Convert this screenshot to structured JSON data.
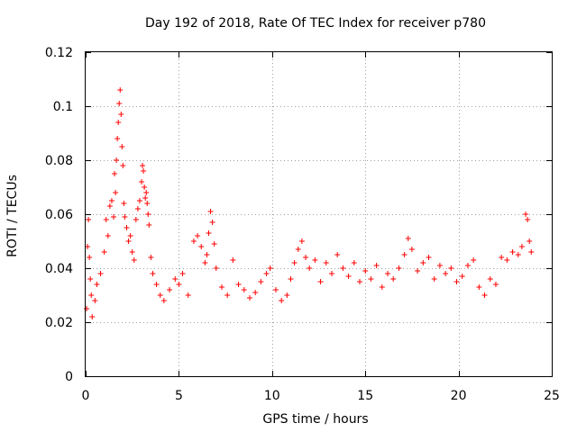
{
  "chart_data": {
    "type": "scatter",
    "title": "Day 192 of 2018, Rate Of TEC Index for receiver p780",
    "xlabel": "GPS time / hours",
    "ylabel": "ROTI / TECUs",
    "xlim": [
      0,
      25
    ],
    "ylim": [
      0,
      0.12
    ],
    "x_ticks": [
      0,
      5,
      10,
      15,
      20,
      25
    ],
    "x_tick_labels": [
      "0",
      "5",
      "10",
      "15",
      "20",
      "25"
    ],
    "y_ticks": [
      0,
      0.02,
      0.04,
      0.06,
      0.08,
      0.1,
      0.12
    ],
    "y_tick_labels": [
      "0",
      "0.02",
      "0.04",
      "0.06",
      "0.08",
      "0.1",
      "0.12"
    ],
    "grid": true,
    "marker": "+",
    "color": "#ff0000",
    "series": [
      {
        "name": "ROTI",
        "x": [
          0.05,
          0.1,
          0.15,
          0.2,
          0.25,
          0.3,
          0.35,
          0.5,
          0.6,
          0.8,
          1.0,
          1.1,
          1.2,
          1.3,
          1.4,
          1.5,
          1.55,
          1.6,
          1.65,
          1.7,
          1.75,
          1.8,
          1.85,
          1.9,
          1.95,
          2.0,
          2.05,
          2.1,
          2.2,
          2.3,
          2.4,
          2.5,
          2.6,
          2.7,
          2.8,
          2.9,
          3.0,
          3.05,
          3.1,
          3.15,
          3.2,
          3.25,
          3.3,
          3.35,
          3.4,
          3.5,
          3.6,
          3.8,
          4.0,
          4.2,
          4.5,
          4.8,
          5.0,
          5.2,
          5.5,
          5.8,
          6.0,
          6.2,
          6.4,
          6.5,
          6.6,
          6.7,
          6.8,
          6.9,
          7.0,
          7.3,
          7.6,
          7.9,
          8.2,
          8.5,
          8.8,
          9.1,
          9.4,
          9.7,
          9.9,
          10.2,
          10.5,
          10.8,
          11.0,
          11.2,
          11.4,
          11.6,
          11.8,
          12.0,
          12.3,
          12.6,
          12.9,
          13.2,
          13.5,
          13.8,
          14.1,
          14.4,
          14.7,
          15.0,
          15.3,
          15.6,
          15.9,
          16.2,
          16.5,
          16.8,
          17.1,
          17.3,
          17.5,
          17.8,
          18.1,
          18.4,
          18.7,
          19.0,
          19.3,
          19.6,
          19.9,
          20.2,
          20.5,
          20.8,
          21.1,
          21.4,
          21.7,
          22.0,
          22.3,
          22.6,
          22.9,
          23.2,
          23.4,
          23.6,
          23.7,
          23.8,
          23.9
        ],
        "y": [
          0.025,
          0.048,
          0.058,
          0.044,
          0.036,
          0.03,
          0.022,
          0.028,
          0.034,
          0.038,
          0.046,
          0.058,
          0.052,
          0.063,
          0.065,
          0.059,
          0.075,
          0.068,
          0.08,
          0.088,
          0.094,
          0.101,
          0.106,
          0.097,
          0.085,
          0.078,
          0.064,
          0.059,
          0.055,
          0.05,
          0.052,
          0.046,
          0.043,
          0.058,
          0.062,
          0.065,
          0.072,
          0.078,
          0.076,
          0.07,
          0.066,
          0.068,
          0.064,
          0.06,
          0.056,
          0.044,
          0.038,
          0.034,
          0.03,
          0.028,
          0.032,
          0.036,
          0.034,
          0.038,
          0.03,
          0.05,
          0.052,
          0.048,
          0.042,
          0.045,
          0.053,
          0.061,
          0.057,
          0.049,
          0.04,
          0.033,
          0.03,
          0.043,
          0.034,
          0.032,
          0.029,
          0.031,
          0.035,
          0.038,
          0.04,
          0.032,
          0.028,
          0.03,
          0.036,
          0.042,
          0.047,
          0.05,
          0.044,
          0.04,
          0.043,
          0.035,
          0.042,
          0.038,
          0.045,
          0.04,
          0.037,
          0.042,
          0.035,
          0.039,
          0.036,
          0.041,
          0.033,
          0.038,
          0.036,
          0.04,
          0.045,
          0.051,
          0.047,
          0.039,
          0.042,
          0.044,
          0.036,
          0.041,
          0.038,
          0.04,
          0.035,
          0.037,
          0.041,
          0.043,
          0.033,
          0.03,
          0.036,
          0.034,
          0.044,
          0.043,
          0.046,
          0.045,
          0.048,
          0.06,
          0.058,
          0.05,
          0.046
        ]
      }
    ]
  }
}
